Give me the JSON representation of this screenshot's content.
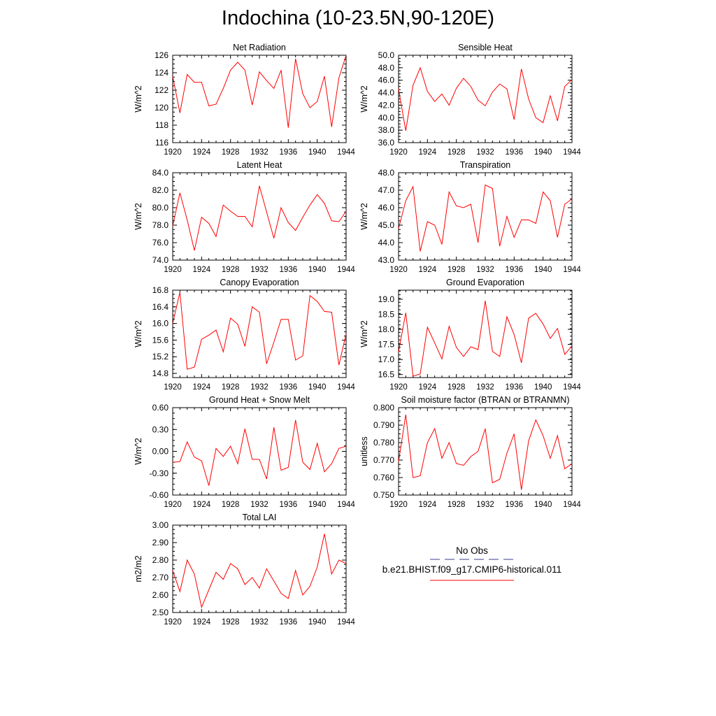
{
  "title": "Indochina (10-23.5N,90-120E)",
  "colors": {
    "model_line": "#ff0000",
    "obs_line": "#3b3b8f",
    "axes": "#000000"
  },
  "legend": {
    "obs_label": "No Obs",
    "model_label": "b.e21.BHIST.f09_g17.CMIP6-historical.011"
  },
  "chart_data": [
    {
      "type": "line",
      "title": "Net Radiation",
      "ylabel": "W/m^2",
      "xlim": [
        1920,
        1944
      ],
      "ylim": [
        116,
        126
      ],
      "xticks": [
        "1920",
        "1924",
        "1928",
        "1932",
        "1936",
        "1940",
        "1944"
      ],
      "yticks": [
        "116",
        "118",
        "120",
        "122",
        "124",
        "126"
      ],
      "x": [
        1920,
        1921,
        1922,
        1923,
        1924,
        1925,
        1926,
        1927,
        1928,
        1929,
        1930,
        1931,
        1932,
        1933,
        1934,
        1935,
        1936,
        1937,
        1938,
        1939,
        1940,
        1941,
        1942,
        1943,
        1944
      ],
      "values": [
        123.6,
        119.4,
        123.8,
        122.9,
        122.9,
        120.2,
        120.4,
        122.2,
        124.3,
        125.2,
        124.3,
        120.3,
        124.1,
        123.1,
        122.2,
        124.3,
        117.7,
        125.6,
        121.6,
        120.0,
        120.7,
        123.6,
        117.8,
        123.4,
        126.0
      ]
    },
    {
      "type": "line",
      "title": "Sensible Heat",
      "ylabel": "W/m^2",
      "xlim": [
        1920,
        1944
      ],
      "ylim": [
        36.0,
        50.0
      ],
      "xticks": [
        "1920",
        "1924",
        "1928",
        "1932",
        "1936",
        "1940",
        "1944"
      ],
      "yticks": [
        "36.0",
        "38.0",
        "40.0",
        "42.0",
        "44.0",
        "46.0",
        "48.0",
        "50.0"
      ],
      "x": [
        1920,
        1921,
        1922,
        1923,
        1924,
        1925,
        1926,
        1927,
        1928,
        1929,
        1930,
        1931,
        1932,
        1933,
        1934,
        1935,
        1936,
        1937,
        1938,
        1939,
        1940,
        1941,
        1942,
        1943,
        1944
      ],
      "values": [
        44.6,
        37.9,
        45.2,
        48.0,
        44.2,
        42.6,
        43.8,
        42.0,
        44.7,
        46.3,
        45.0,
        42.8,
        41.9,
        44.1,
        45.4,
        44.6,
        39.7,
        47.8,
        43.0,
        40.0,
        39.2,
        43.5,
        39.5,
        45.0,
        46.1
      ]
    },
    {
      "type": "line",
      "title": "Latent Heat",
      "ylabel": "W/m^2",
      "xlim": [
        1920,
        1944
      ],
      "ylim": [
        74.0,
        84.0
      ],
      "xticks": [
        "1920",
        "1924",
        "1928",
        "1932",
        "1936",
        "1940",
        "1944"
      ],
      "yticks": [
        "74.0",
        "76.0",
        "78.0",
        "80.0",
        "82.0",
        "84.0"
      ],
      "x": [
        1920,
        1921,
        1922,
        1923,
        1924,
        1925,
        1926,
        1927,
        1928,
        1929,
        1930,
        1931,
        1932,
        1933,
        1934,
        1935,
        1936,
        1937,
        1938,
        1939,
        1940,
        1941,
        1942,
        1943,
        1944
      ],
      "values": [
        77.9,
        81.7,
        78.6,
        75.1,
        78.9,
        78.2,
        76.7,
        80.3,
        79.6,
        79.0,
        79.0,
        77.8,
        82.5,
        79.5,
        76.5,
        80.0,
        78.3,
        77.4,
        78.9,
        80.3,
        81.5,
        80.5,
        78.5,
        78.4,
        79.6
      ]
    },
    {
      "type": "line",
      "title": "Transpiration",
      "ylabel": "W/m^2",
      "xlim": [
        1920,
        1944
      ],
      "ylim": [
        43.0,
        48.0
      ],
      "xticks": [
        "1920",
        "1924",
        "1928",
        "1932",
        "1936",
        "1940",
        "1944"
      ],
      "yticks": [
        "43.0",
        "44.0",
        "45.0",
        "46.0",
        "47.0",
        "48.0"
      ],
      "x": [
        1920,
        1921,
        1922,
        1923,
        1924,
        1925,
        1926,
        1927,
        1928,
        1929,
        1930,
        1931,
        1932,
        1933,
        1934,
        1935,
        1936,
        1937,
        1938,
        1939,
        1940,
        1941,
        1942,
        1943,
        1944
      ],
      "values": [
        44.8,
        46.4,
        47.2,
        43.5,
        45.2,
        45.0,
        43.9,
        46.9,
        46.1,
        46.0,
        46.2,
        44.0,
        47.3,
        47.1,
        43.8,
        45.5,
        44.3,
        45.3,
        45.3,
        45.1,
        46.9,
        46.4,
        44.3,
        46.2,
        46.5
      ]
    },
    {
      "type": "line",
      "title": "Canopy Evaporation",
      "ylabel": "W/m^2",
      "xlim": [
        1920,
        1944
      ],
      "ylim": [
        14.7,
        16.8
      ],
      "xticks": [
        "1920",
        "1924",
        "1928",
        "1932",
        "1936",
        "1940",
        "1944"
      ],
      "yticks": [
        "14.8",
        "15.2",
        "15.6",
        "16.0",
        "16.4",
        "16.8"
      ],
      "x": [
        1920,
        1921,
        1922,
        1923,
        1924,
        1925,
        1926,
        1927,
        1928,
        1929,
        1930,
        1931,
        1932,
        1933,
        1934,
        1935,
        1936,
        1937,
        1938,
        1939,
        1940,
        1941,
        1942,
        1943,
        1944
      ],
      "values": [
        16.0,
        16.75,
        14.9,
        14.95,
        15.62,
        15.72,
        15.84,
        15.32,
        16.13,
        15.98,
        15.45,
        16.4,
        16.27,
        15.03,
        15.55,
        16.1,
        16.1,
        15.12,
        15.22,
        16.67,
        16.53,
        16.29,
        16.27,
        15.0,
        15.75
      ]
    },
    {
      "type": "line",
      "title": "Ground Evaporation",
      "ylabel": "W/m^2",
      "xlim": [
        1920,
        1944
      ],
      "ylim": [
        16.4,
        19.3
      ],
      "xticks": [
        "1920",
        "1924",
        "1928",
        "1932",
        "1936",
        "1940",
        "1944"
      ],
      "yticks": [
        "16.5",
        "17.0",
        "17.5",
        "18.0",
        "18.5",
        "19.0"
      ],
      "x": [
        1920,
        1921,
        1922,
        1923,
        1924,
        1925,
        1926,
        1927,
        1928,
        1929,
        1930,
        1931,
        1932,
        1933,
        1934,
        1935,
        1936,
        1937,
        1938,
        1939,
        1940,
        1941,
        1942,
        1943,
        1944
      ],
      "values": [
        17.25,
        18.55,
        16.45,
        16.52,
        18.07,
        17.55,
        17.02,
        18.1,
        17.4,
        17.1,
        17.42,
        17.33,
        18.95,
        17.27,
        17.1,
        18.42,
        17.83,
        16.89,
        18.37,
        18.53,
        18.18,
        17.7,
        18.03,
        17.17,
        17.45
      ]
    },
    {
      "type": "line",
      "title": "Ground Heat + Snow Melt",
      "ylabel": "W/m^2",
      "xlim": [
        1920,
        1944
      ],
      "ylim": [
        -0.6,
        0.6
      ],
      "xticks": [
        "1920",
        "1924",
        "1928",
        "1932",
        "1936",
        "1940",
        "1944"
      ],
      "yticks": [
        "-0.60",
        "-0.30",
        "0.00",
        "0.30",
        "0.60"
      ],
      "x": [
        1920,
        1921,
        1922,
        1923,
        1924,
        1925,
        1926,
        1927,
        1928,
        1929,
        1930,
        1931,
        1932,
        1933,
        1934,
        1935,
        1936,
        1937,
        1938,
        1939,
        1940,
        1941,
        1942,
        1943,
        1944
      ],
      "values": [
        -0.15,
        -0.14,
        0.13,
        -0.08,
        -0.13,
        -0.47,
        0.04,
        -0.07,
        0.07,
        -0.17,
        0.31,
        -0.11,
        -0.11,
        -0.38,
        0.33,
        -0.26,
        -0.22,
        0.43,
        -0.15,
        -0.25,
        0.11,
        -0.28,
        -0.17,
        0.04,
        0.07
      ]
    },
    {
      "type": "line",
      "title": "Soil moisture factor (BTRAN or BTRANMN)",
      "ylabel": "unitless",
      "xlim": [
        1920,
        1944
      ],
      "ylim": [
        0.75,
        0.8
      ],
      "xticks": [
        "1920",
        "1924",
        "1928",
        "1932",
        "1936",
        "1940",
        "1944"
      ],
      "yticks": [
        "0.750",
        "0.760",
        "0.770",
        "0.780",
        "0.790",
        "0.800"
      ],
      "x": [
        1920,
        1921,
        1922,
        1923,
        1924,
        1925,
        1926,
        1927,
        1928,
        1929,
        1930,
        1931,
        1932,
        1933,
        1934,
        1935,
        1936,
        1937,
        1938,
        1939,
        1940,
        1941,
        1942,
        1943,
        1944
      ],
      "values": [
        0.769,
        0.796,
        0.76,
        0.761,
        0.78,
        0.788,
        0.771,
        0.78,
        0.768,
        0.767,
        0.772,
        0.775,
        0.788,
        0.757,
        0.759,
        0.774,
        0.785,
        0.753,
        0.781,
        0.793,
        0.784,
        0.771,
        0.784,
        0.765,
        0.768
      ]
    },
    {
      "type": "line",
      "title": "Total LAI",
      "ylabel": "m2/m2",
      "xlim": [
        1920,
        1944
      ],
      "ylim": [
        2.5,
        3.0
      ],
      "xticks": [
        "1920",
        "1924",
        "1928",
        "1932",
        "1936",
        "1940",
        "1944"
      ],
      "yticks": [
        "2.50",
        "2.60",
        "2.70",
        "2.80",
        "2.90",
        "3.00"
      ],
      "x": [
        1920,
        1921,
        1922,
        1923,
        1924,
        1925,
        1926,
        1927,
        1928,
        1929,
        1930,
        1931,
        1932,
        1933,
        1934,
        1935,
        1936,
        1937,
        1938,
        1939,
        1940,
        1941,
        1942,
        1943,
        1944
      ],
      "values": [
        2.74,
        2.62,
        2.8,
        2.72,
        2.53,
        2.63,
        2.73,
        2.69,
        2.78,
        2.75,
        2.66,
        2.7,
        2.64,
        2.75,
        2.68,
        2.61,
        2.58,
        2.74,
        2.6,
        2.65,
        2.76,
        2.95,
        2.72,
        2.8,
        2.78
      ]
    }
  ]
}
